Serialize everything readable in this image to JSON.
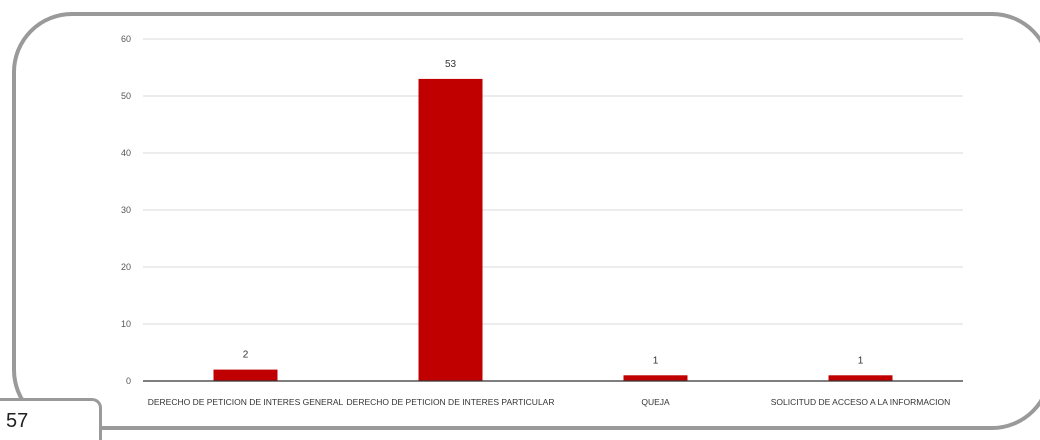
{
  "page_number": "57",
  "colors": {
    "bar": "#c00000",
    "grid": "#d9d9d9",
    "axis": "#333333",
    "frame": "#9a9a9a"
  },
  "chart_data": {
    "type": "bar",
    "categories": [
      "DERECHO DE PETICION DE INTERES GENERAL",
      "DERECHO DE PETICION DE INTERES PARTICULAR",
      "QUEJA",
      "SOLICITUD DE ACCESO A LA INFORMACION"
    ],
    "values": [
      2,
      53,
      1,
      1
    ],
    "data_labels": [
      "2",
      "53",
      "1",
      "1"
    ],
    "title": "",
    "xlabel": "",
    "ylabel": "",
    "ylim": [
      0,
      60
    ],
    "yticks": [
      0,
      10,
      20,
      30,
      40,
      50,
      60
    ],
    "grid": true
  }
}
